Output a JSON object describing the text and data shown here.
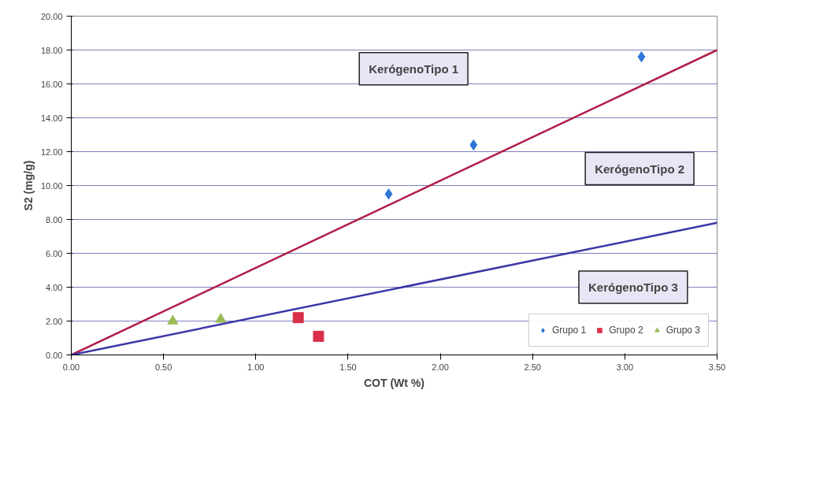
{
  "chart_data": {
    "type": "scatter",
    "xlabel": "COT (Wt %)",
    "ylabel": "S2 (mg/g)",
    "xlim": [
      0,
      3.5
    ],
    "ylim": [
      0,
      20
    ],
    "xticks": [
      {
        "value": 0,
        "label": "0.00"
      },
      {
        "value": 0.5,
        "label": "0.50"
      },
      {
        "value": 1,
        "label": "1.00"
      },
      {
        "value": 1.5,
        "label": "1.50"
      },
      {
        "value": 2,
        "label": "2.00"
      },
      {
        "value": 2.5,
        "label": "2.50"
      },
      {
        "value": 3,
        "label": "3.00"
      },
      {
        "value": 3.5,
        "label": "3.50"
      }
    ],
    "yticks": [
      {
        "value": 0,
        "label": "0.00"
      },
      {
        "value": 2,
        "label": "2.00"
      },
      {
        "value": 4,
        "label": "4.00"
      },
      {
        "value": 6,
        "label": "6.00"
      },
      {
        "value": 8,
        "label": "8.00"
      },
      {
        "value": 10,
        "label": "10.00"
      },
      {
        "value": 12,
        "label": "12.00"
      },
      {
        "value": 14,
        "label": "14.00"
      },
      {
        "value": 16,
        "label": "16.00"
      },
      {
        "value": 18,
        "label": "18.00"
      },
      {
        "value": 20,
        "label": "20.00"
      }
    ],
    "grid": "y",
    "legend": "bottom right",
    "series": [
      {
        "name": "Grupo 1",
        "color": "#2e75d6",
        "marker": "diamond",
        "x": [
          1.72,
          2.18,
          3.09
        ],
        "values": [
          9.5,
          12.4,
          17.6
        ]
      },
      {
        "name": "Grupo 2",
        "color": "#d9304a",
        "marker": "square",
        "x": [
          1.23,
          1.34
        ],
        "values": [
          2.2,
          1.1
        ]
      },
      {
        "name": "Grupo 3",
        "color": "#9bbb59",
        "marker": "triangle",
        "x": [
          0.55,
          0.81
        ],
        "values": [
          2.0,
          2.1
        ]
      },
      {
        "type": "line",
        "color": "#b01e4a",
        "x": [
          0,
          3.5
        ],
        "values": [
          0,
          18
        ]
      },
      {
        "type": "line",
        "color": "#3b36a6",
        "x": [
          0,
          3.5
        ],
        "values": [
          0,
          7.8
        ]
      }
    ],
    "annotations": [
      "KerógenoTipo 1",
      "KerógenoTipo 2",
      "KerógenoTipo 3"
    ]
  }
}
